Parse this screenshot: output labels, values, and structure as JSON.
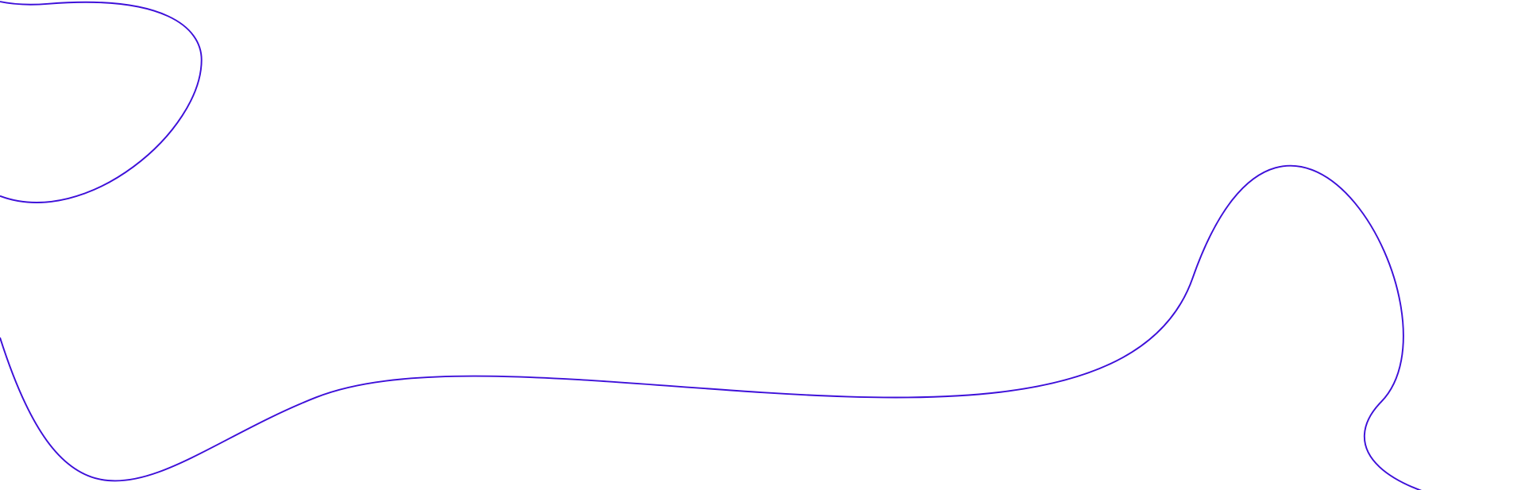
{
  "decoration": {
    "stroke_color": "#3d0fd9",
    "background_color": "#ffffff"
  }
}
